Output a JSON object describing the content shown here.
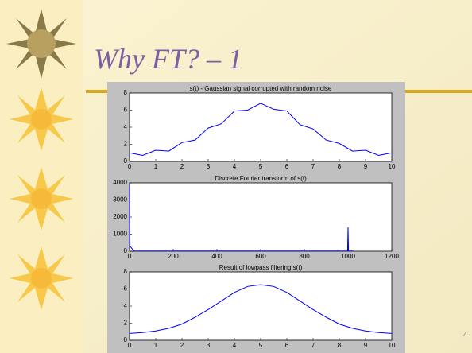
{
  "slide": {
    "title": "Why FT? – 1",
    "page_number": "4"
  },
  "chart_data": [
    {
      "type": "line",
      "title": "s(t) - Gaussian signal corrupted with random noise",
      "x": [
        0,
        0.5,
        1,
        1.5,
        2,
        2.5,
        3,
        3.5,
        4,
        4.5,
        5,
        5.5,
        6,
        6.5,
        7,
        7.5,
        8,
        8.5,
        9,
        9.5,
        10
      ],
      "series": [
        {
          "color": "#0000ff",
          "values": [
            1.0,
            0.7,
            1.3,
            1.2,
            2.2,
            2.5,
            3.9,
            4.4,
            5.9,
            6.0,
            6.8,
            6.1,
            5.9,
            4.3,
            3.8,
            2.5,
            2.1,
            1.2,
            1.3,
            0.7,
            1.0
          ]
        }
      ],
      "xlim": [
        0,
        10
      ],
      "xticks": [
        0,
        1,
        2,
        3,
        4,
        5,
        6,
        7,
        8,
        9,
        10
      ],
      "ylim": [
        0,
        8
      ],
      "yticks": [
        0,
        2,
        4,
        6,
        8
      ]
    },
    {
      "type": "line",
      "title": "Discrete Fourier transform of s(t)",
      "x": [
        0,
        2,
        20,
        200,
        500,
        800,
        998,
        1000,
        1002,
        1024
      ],
      "series": [
        {
          "color": "#0000ff",
          "values": [
            3900,
            300,
            20,
            10,
            10,
            10,
            20,
            1400,
            20,
            10
          ]
        }
      ],
      "xlim": [
        0,
        1200
      ],
      "xticks": [
        0,
        200,
        400,
        600,
        800,
        1000,
        1200
      ],
      "ylim": [
        0,
        4000
      ],
      "yticks": [
        0,
        1000,
        2000,
        3000,
        4000
      ]
    },
    {
      "type": "line",
      "title": "Result of lowpass filtering s(t)",
      "x": [
        0,
        0.5,
        1,
        1.5,
        2,
        2.5,
        3,
        3.5,
        4,
        4.5,
        5,
        5.5,
        6,
        6.5,
        7,
        7.5,
        8,
        8.5,
        9,
        9.5,
        10
      ],
      "series": [
        {
          "color": "#0000ff",
          "values": [
            0.8,
            0.9,
            1.1,
            1.4,
            1.9,
            2.7,
            3.6,
            4.6,
            5.6,
            6.3,
            6.5,
            6.3,
            5.6,
            4.6,
            3.6,
            2.7,
            1.9,
            1.4,
            1.1,
            0.9,
            0.8
          ]
        }
      ],
      "xlim": [
        0,
        10
      ],
      "xticks": [
        0,
        1,
        2,
        3,
        4,
        5,
        6,
        7,
        8,
        9,
        10
      ],
      "ylim": [
        0,
        8
      ],
      "yticks": [
        0,
        2,
        4,
        6,
        8
      ]
    }
  ]
}
